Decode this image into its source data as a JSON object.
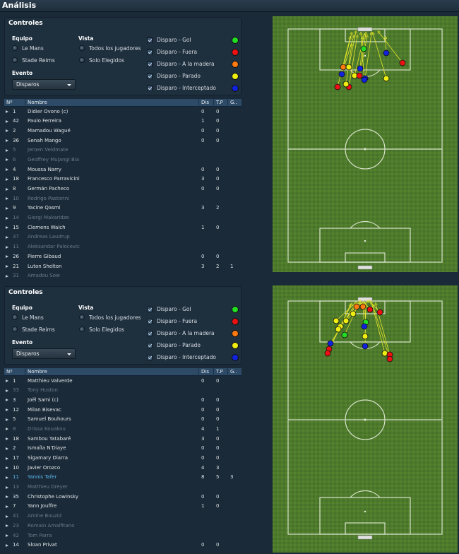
{
  "app": {
    "title": "Análisis"
  },
  "panels": [
    {
      "controls": {
        "title": "Controles",
        "team_label": "Equipo",
        "teams": [
          "Le Mans",
          "Stade Reims"
        ],
        "view_label": "Vista",
        "views": [
          "Todos los jugadores",
          "Solo Elegidos"
        ],
        "event_label": "Evento",
        "event_value": "Disparos",
        "legend": [
          {
            "label": "Disparo - Gol",
            "color": "#22dd22"
          },
          {
            "label": "Disparo - Fuera",
            "color": "#ee1111"
          },
          {
            "label": "Disparo - A la madera",
            "color": "#ff7a11"
          },
          {
            "label": "Disparo - Parado",
            "color": "#eeee11"
          },
          {
            "label": "Disparo - Interceptado",
            "color": "#1122dd"
          }
        ]
      },
      "table": {
        "headers": {
          "num": "Nº",
          "name": "Nombre",
          "dis": "Dis",
          "tp": "T.P",
          "g": "G.."
        },
        "rows": [
          {
            "num": "1",
            "name": "Didier Ovono (c)",
            "dis": "0",
            "tp": "0",
            "g": "",
            "state": "active"
          },
          {
            "num": "42",
            "name": "Paulo Ferreira",
            "dis": "1",
            "tp": "0",
            "g": "",
            "state": "active"
          },
          {
            "num": "2",
            "name": "Mamadou Wagué",
            "dis": "0",
            "tp": "0",
            "g": "",
            "state": "active"
          },
          {
            "num": "36",
            "name": "Senah Mango",
            "dis": "0",
            "tp": "0",
            "g": "",
            "state": "active"
          },
          {
            "num": "5",
            "name": "Jeroen Veldmate",
            "dis": "",
            "tp": "",
            "g": "",
            "state": "muted"
          },
          {
            "num": "6",
            "name": "Geoffrey Mujangi Bia",
            "dis": "",
            "tp": "",
            "g": "",
            "state": "muted"
          },
          {
            "num": "4",
            "name": "Moussa Narry",
            "dis": "0",
            "tp": "0",
            "g": "",
            "state": "active"
          },
          {
            "num": "18",
            "name": "Francesco Parravicini",
            "dis": "3",
            "tp": "0",
            "g": "",
            "state": "active"
          },
          {
            "num": "8",
            "name": "Germán Pacheco",
            "dis": "0",
            "tp": "0",
            "g": "",
            "state": "active"
          },
          {
            "num": "10",
            "name": "Rodrigo Pastorini",
            "dis": "",
            "tp": "",
            "g": "",
            "state": "muted"
          },
          {
            "num": "9",
            "name": "Yacine Qasmi",
            "dis": "3",
            "tp": "2",
            "g": "",
            "state": "active"
          },
          {
            "num": "14",
            "name": "Giorgi Makaridze",
            "dis": "",
            "tp": "",
            "g": "",
            "state": "muted"
          },
          {
            "num": "15",
            "name": "Clemens Walch",
            "dis": "1",
            "tp": "0",
            "g": "",
            "state": "active"
          },
          {
            "num": "37",
            "name": "Andreas Laudrup",
            "dis": "",
            "tp": "",
            "g": "",
            "state": "muted"
          },
          {
            "num": "11",
            "name": "Aleksandar Palocevic",
            "dis": "",
            "tp": "",
            "g": "",
            "state": "muted"
          },
          {
            "num": "26",
            "name": "Pierre Gibaud",
            "dis": "0",
            "tp": "0",
            "g": "",
            "state": "active"
          },
          {
            "num": "21",
            "name": "Luton Shelton",
            "dis": "3",
            "tp": "2",
            "g": "1",
            "state": "active"
          },
          {
            "num": "31",
            "name": "Amadou Sow",
            "dis": "",
            "tp": "",
            "g": "",
            "state": "muted"
          }
        ]
      }
    },
    {
      "controls": {
        "title": "Controles",
        "team_label": "Equipo",
        "teams": [
          "Le Mans",
          "Stade Reims"
        ],
        "view_label": "Vista",
        "views": [
          "Todos los jugadores",
          "Solo Elegidos"
        ],
        "event_label": "Evento",
        "event_value": "Disparos",
        "legend": [
          {
            "label": "Disparo - Gol",
            "color": "#22dd22"
          },
          {
            "label": "Disparo - Fuera",
            "color": "#ee1111"
          },
          {
            "label": "Disparo - A la madera",
            "color": "#ff7a11"
          },
          {
            "label": "Disparo - Parado",
            "color": "#eeee11"
          },
          {
            "label": "Disparo - Interceptado",
            "color": "#1122dd"
          }
        ]
      },
      "table": {
        "headers": {
          "num": "Nº",
          "name": "Nombre",
          "dis": "Dis",
          "tp": "T.P",
          "g": "G.."
        },
        "rows": [
          {
            "num": "1",
            "name": "Matthieu Valverde",
            "dis": "0",
            "tp": "0",
            "g": "",
            "state": "active"
          },
          {
            "num": "33",
            "name": "Tony Huston",
            "dis": "",
            "tp": "",
            "g": "",
            "state": "muted"
          },
          {
            "num": "3",
            "name": "Joël Sami (c)",
            "dis": "0",
            "tp": "0",
            "g": "",
            "state": "active"
          },
          {
            "num": "12",
            "name": "Milan Bisevac",
            "dis": "0",
            "tp": "0",
            "g": "",
            "state": "active"
          },
          {
            "num": "5",
            "name": "Samuel Bouhours",
            "dis": "0",
            "tp": "0",
            "g": "",
            "state": "active"
          },
          {
            "num": "8",
            "name": "Drissa Kouakou",
            "dis": "4",
            "tp": "1",
            "g": "",
            "state": "muted"
          },
          {
            "num": "18",
            "name": "Sambou Yatabaré",
            "dis": "3",
            "tp": "0",
            "g": "",
            "state": "active"
          },
          {
            "num": "2",
            "name": "Ismaïla N'Diaye",
            "dis": "0",
            "tp": "0",
            "g": "",
            "state": "active"
          },
          {
            "num": "17",
            "name": "Sigamary Diarra",
            "dis": "0",
            "tp": "0",
            "g": "",
            "state": "active"
          },
          {
            "num": "10",
            "name": "Javier Orozco",
            "dis": "4",
            "tp": "3",
            "g": "",
            "state": "active"
          },
          {
            "num": "11",
            "name": "Yannis Tafer",
            "dis": "8",
            "tp": "5",
            "g": "3",
            "state": "highlight"
          },
          {
            "num": "13",
            "name": "Matthieu Dreyer",
            "dis": "",
            "tp": "",
            "g": "",
            "state": "muted"
          },
          {
            "num": "35",
            "name": "Christophe Lowinsky",
            "dis": "0",
            "tp": "0",
            "g": "",
            "state": "active"
          },
          {
            "num": "7",
            "name": "Yann Jouffre",
            "dis": "1",
            "tp": "0",
            "g": "",
            "state": "active"
          },
          {
            "num": "41",
            "name": "Amine Bouzid",
            "dis": "",
            "tp": "",
            "g": "",
            "state": "muted"
          },
          {
            "num": "23",
            "name": "Romain Amalfitano",
            "dis": "",
            "tp": "",
            "g": "",
            "state": "muted"
          },
          {
            "num": "42",
            "name": "Tom Parra",
            "dis": "",
            "tp": "",
            "g": "",
            "state": "muted"
          },
          {
            "num": "14",
            "name": "Sloan Privat",
            "dis": "0",
            "tp": "0",
            "g": "",
            "state": "active"
          }
        ]
      }
    }
  ]
}
